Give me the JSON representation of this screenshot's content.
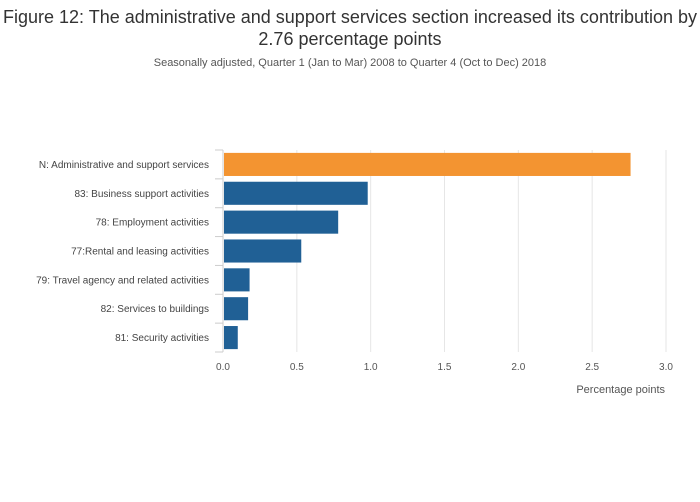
{
  "chart_data": {
    "type": "bar",
    "orientation": "horizontal",
    "title": "Figure 12: The administrative and support services section increased its contribution by 2.76 percentage points",
    "subtitle": "Seasonally adjusted, Quarter 1 (Jan to Mar) 2008 to Quarter 4 (Oct to Dec) 2018",
    "xlabel": "Percentage points",
    "ylabel": "",
    "xlim": [
      0,
      3.0
    ],
    "xticks": [
      "0.0",
      "0.5",
      "1.0",
      "1.5",
      "2.0",
      "2.5",
      "3.0"
    ],
    "grid": true,
    "categories": [
      "N: Administrative and support services",
      "83: Business support activities",
      "78: Employment activities",
      "77:Rental and leasing activities",
      "79: Travel agency and related activities",
      "82: Services to buildings",
      "81: Security activities"
    ],
    "values": [
      2.76,
      0.98,
      0.78,
      0.53,
      0.18,
      0.17,
      0.1
    ],
    "colors": {
      "highlight": "#f39431",
      "default": "#206095",
      "grid": "#e6e6e6"
    }
  }
}
